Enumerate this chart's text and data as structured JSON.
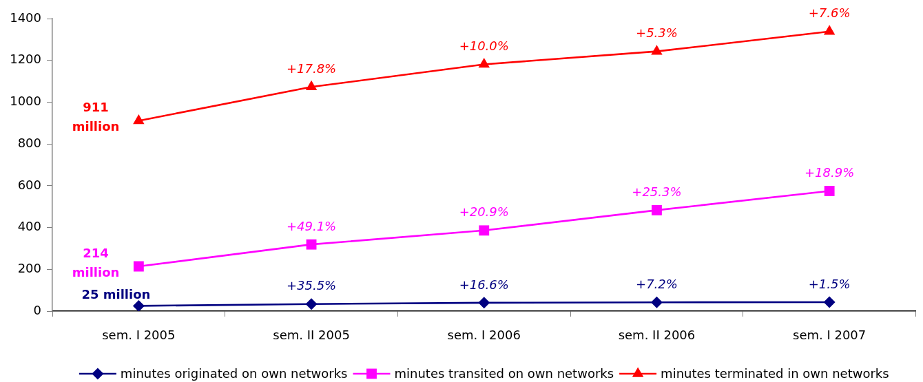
{
  "chart_data": {
    "type": "line",
    "categories": [
      "sem. I 2005",
      "sem. II 2005",
      "sem. I 2006",
      "sem. II 2006",
      "sem. I 2007"
    ],
    "series": [
      {
        "name": "minutes originated on own networks",
        "color": "#000080",
        "marker": "diamond",
        "values": [
          25,
          34,
          40,
          42,
          43
        ],
        "value_labels": [
          "25 million",
          null,
          null,
          null,
          null
        ]
      },
      {
        "name": "minutes transited on own networks",
        "color": "#ff00ff",
        "marker": "square",
        "values": [
          214,
          319,
          386,
          483,
          575
        ],
        "value_labels": [
          "214 million",
          null,
          null,
          null,
          null
        ]
      },
      {
        "name": "minutes terminated in own networks",
        "color": "#ff0000",
        "marker": "triangle",
        "values": [
          911,
          1073,
          1181,
          1243,
          1338
        ],
        "value_labels": [
          "911 million",
          null,
          null,
          null,
          null
        ]
      }
    ],
    "annotations": [
      {
        "text": "+35.5%",
        "x": "sem. II 2005",
        "y": 34
      },
      {
        "text": "+16.6%",
        "x": "sem. I 2006",
        "y": 40
      },
      {
        "text": "+7.2%",
        "x": "sem. II 2006",
        "y": 42
      },
      {
        "text": "+1.5%",
        "x": "sem. I 2007",
        "y": 43
      },
      {
        "text": "+49.1%",
        "x": "sem. II 2005",
        "y": 319
      },
      {
        "text": "+20.9%",
        "x": "sem. I 2006",
        "y": 386
      },
      {
        "text": "+25.3%",
        "x": "sem. II 2006",
        "y": 483
      },
      {
        "text": "+18.9%",
        "x": "sem. I 2007",
        "y": 575
      },
      {
        "text": "+17.8%",
        "x": "sem. II 2005",
        "y": 1073
      },
      {
        "text": "+10.0%",
        "x": "sem. I 2006",
        "y": 1181
      },
      {
        "text": "+5.3%",
        "x": "sem. II 2006",
        "y": 1243
      },
      {
        "text": "+7.6%",
        "x": "sem. I 2007",
        "y": 1338
      }
    ],
    "ylim": [
      0,
      1400
    ],
    "yticks": [
      0,
      200,
      400,
      600,
      800,
      1000,
      1200,
      1400
    ],
    "grid": false,
    "legend": "bottom",
    "line_style": "solid"
  }
}
